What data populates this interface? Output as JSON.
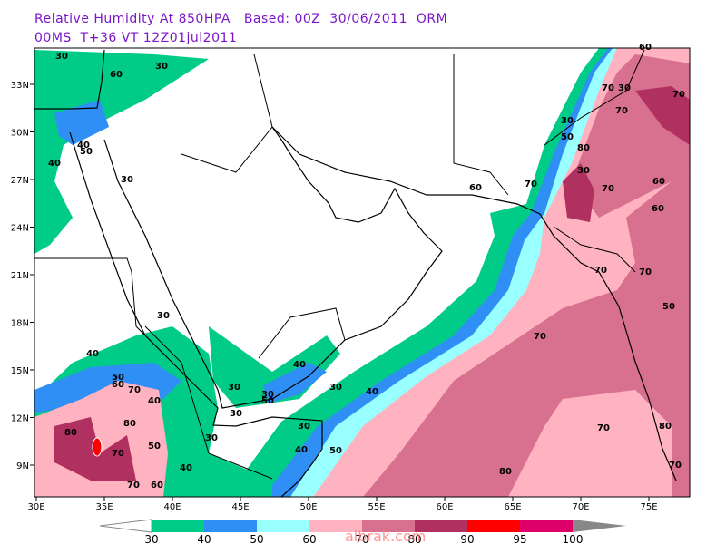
{
  "header": {
    "line1": "Relative Humidity At 850HPA   Based: 00Z  30/06/2011  ORM",
    "line2": "00MS  T+36 VT 12Z01jul2011"
  },
  "map": {
    "lon_labels": [
      "30E",
      "35E",
      "40E",
      "45E",
      "50E",
      "55E",
      "60E",
      "65E",
      "70E",
      "75E"
    ],
    "lat_labels": [
      "33N",
      "30N",
      "27N",
      "24N",
      "21N",
      "18N",
      "15N",
      "12N",
      "9N"
    ],
    "contour_labels": [
      "30",
      "30",
      "60",
      "30",
      "50",
      "70",
      "30",
      "70",
      "70",
      "60",
      "40",
      "50",
      "40",
      "30",
      "80",
      "30",
      "70",
      "60",
      "70",
      "60",
      "60",
      "70",
      "70",
      "50",
      "70",
      "30",
      "40",
      "40",
      "50",
      "60",
      "70",
      "40",
      "30",
      "40",
      "30",
      "50",
      "30",
      "30",
      "80",
      "80",
      "70",
      "50",
      "30",
      "30",
      "40",
      "50",
      "40",
      "70",
      "60",
      "70",
      "80",
      "70",
      "80"
    ]
  },
  "colorbar": {
    "labels": [
      "30",
      "40",
      "50",
      "60",
      "70",
      "80",
      "90",
      "95",
      "100"
    ],
    "colors": [
      "#00cc88",
      "#2f8ff5",
      "#99ffff",
      "#ffb2bf",
      "#d8708f",
      "#b03060",
      "#ff0000",
      "#dc0068"
    ]
  },
  "watermark": "albrak.com"
}
